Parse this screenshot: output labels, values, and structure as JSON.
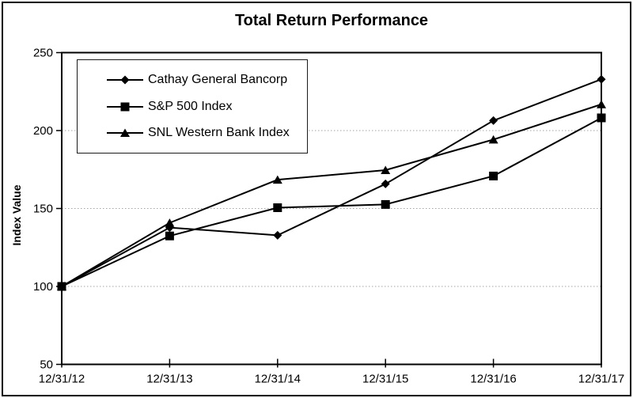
{
  "chart_data": {
    "type": "line",
    "title": "Total Return Performance",
    "xlabel": "",
    "ylabel": "Index Value",
    "x_categories": [
      "12/31/12",
      "12/31/13",
      "12/31/14",
      "12/31/15",
      "12/31/16",
      "12/31/17"
    ],
    "ylim": [
      50,
      250
    ],
    "yticks": [
      50,
      100,
      150,
      200,
      250
    ],
    "gridlines": {
      "values": [
        100,
        150,
        200
      ],
      "style": "dotted",
      "color": "#a6a6a6"
    },
    "legend_position": "top-left-inside",
    "axis_color": "#000000",
    "background_color": "#ffffff",
    "series": [
      {
        "name": "Cathay General Bancorp",
        "marker": "diamond",
        "color": "#000000",
        "values": [
          100.0,
          137.77,
          132.82,
          165.77,
          206.39,
          232.89
        ]
      },
      {
        "name": "S&P 500 Index",
        "marker": "square",
        "color": "#000000",
        "values": [
          100.0,
          132.39,
          150.51,
          152.59,
          170.84,
          208.14
        ]
      },
      {
        "name": "SNL Western Bank Index",
        "marker": "triangle",
        "color": "#000000",
        "values": [
          100.0,
          140.81,
          168.45,
          174.64,
          194.22,
          216.81
        ]
      }
    ]
  }
}
